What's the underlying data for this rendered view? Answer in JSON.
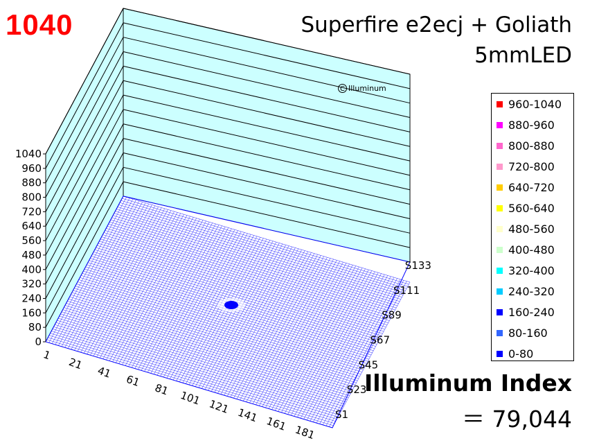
{
  "peak_value": "1040",
  "title_line1": "Superfire e2ecj + Goliath",
  "title_line2": "5mmLED",
  "watermark": "Illuminum",
  "index_label": "Illuminum Index",
  "index_value": "＝ 79,044",
  "colors": {
    "wall": "#ccffff",
    "grid_line": "#000000",
    "floor_mesh": "#0000ff",
    "peak": "#ff0000"
  },
  "legend": [
    {
      "label": "960-1040",
      "color": "#ff0000"
    },
    {
      "label": "880-960",
      "color": "#ff00ff"
    },
    {
      "label": "800-880",
      "color": "#ff66cc"
    },
    {
      "label": "720-800",
      "color": "#ff99cc"
    },
    {
      "label": "640-720",
      "color": "#ffcc00"
    },
    {
      "label": "560-640",
      "color": "#ffff00"
    },
    {
      "label": "480-560",
      "color": "#ffffcc"
    },
    {
      "label": "400-480",
      "color": "#ccffcc"
    },
    {
      "label": "320-400",
      "color": "#00ffff"
    },
    {
      "label": "240-320",
      "color": "#00ccff"
    },
    {
      "label": "160-240",
      "color": "#0000ff"
    },
    {
      "label": "80-160",
      "color": "#3366ff"
    },
    {
      "label": "0-80",
      "color": "#0000ff"
    }
  ],
  "chart_data": {
    "type": "surface3d",
    "title": "Superfire e2ecj + Goliath 5mmLED",
    "z_ticks": [
      "0",
      "80",
      "160",
      "240",
      "320",
      "400",
      "480",
      "560",
      "640",
      "720",
      "800",
      "880",
      "960",
      "1040"
    ],
    "zlim": [
      0,
      1040
    ],
    "x_ticks": [
      "1",
      "21",
      "41",
      "61",
      "81",
      "101",
      "121",
      "141",
      "161",
      "181"
    ],
    "y_ticks": [
      "S1",
      "S23",
      "S45",
      "S67",
      "S89",
      "S111",
      "S133"
    ],
    "peak": 1040,
    "index": 79044,
    "surface_description_level": "nearly flat floor near 0 with a small central hotspot in the 160-240 band"
  }
}
